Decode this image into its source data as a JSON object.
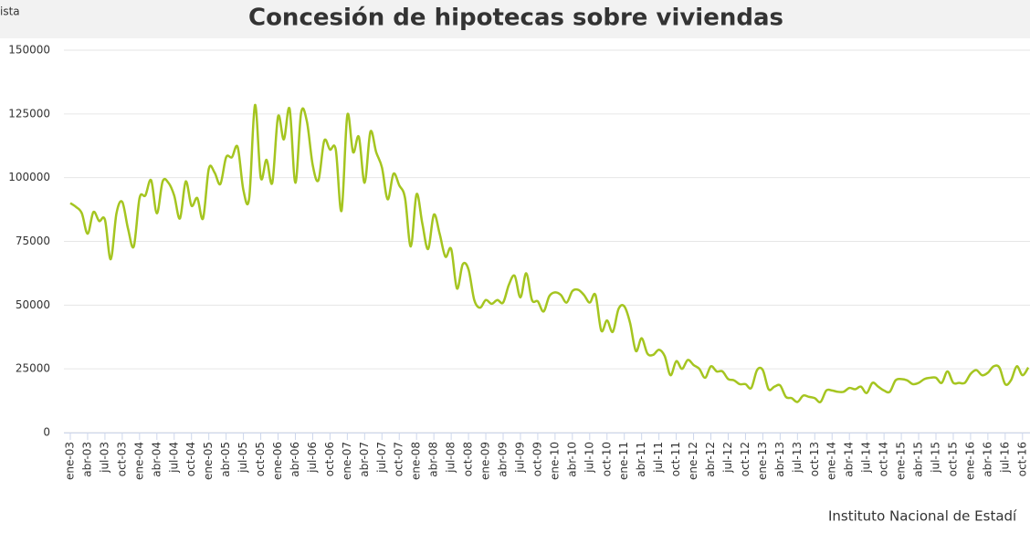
{
  "corner_text": "ista",
  "source": "Instituto Nacional de Estadí",
  "chart_data": {
    "type": "line",
    "title": "Concesión de hipotecas sobre viviendas",
    "color": "#a5c520",
    "grid": true,
    "ylim": [
      0,
      150000
    ],
    "yticks": [
      0,
      25000,
      50000,
      75000,
      100000,
      125000,
      150000
    ],
    "categories": [
      "ene-03",
      null,
      null,
      "abr-03",
      null,
      null,
      "jul-03",
      null,
      null,
      "oct-03",
      null,
      null,
      "ene-04",
      null,
      null,
      "abr-04",
      null,
      null,
      "jul-04",
      null,
      null,
      "oct-04",
      null,
      null,
      "ene-05",
      null,
      null,
      "abr-05",
      null,
      null,
      "jul-05",
      null,
      null,
      "oct-05",
      null,
      null,
      "ene-06",
      null,
      null,
      "abr-06",
      null,
      null,
      "jul-06",
      null,
      null,
      "oct-06",
      null,
      null,
      "ene-07",
      null,
      null,
      "abr-07",
      null,
      null,
      "jul-07",
      null,
      null,
      "oct-07",
      null,
      null,
      "ene-08",
      null,
      null,
      "abr-08",
      null,
      null,
      "jul-08",
      null,
      null,
      "oct-08",
      null,
      null,
      "ene-09",
      null,
      null,
      "abr-09",
      null,
      null,
      "jul-09",
      null,
      null,
      "oct-09",
      null,
      null,
      "ene-10",
      null,
      null,
      "abr-10",
      null,
      null,
      "jul-10",
      null,
      null,
      "oct-10",
      null,
      null,
      "ene-11",
      null,
      null,
      "abr-11",
      null,
      null,
      "jul-11",
      null,
      null,
      "oct-11",
      null,
      null,
      "ene-12",
      null,
      null,
      "abr-12",
      null,
      null,
      "jul-12",
      null,
      null,
      "oct-12",
      null,
      null,
      "ene-13",
      null,
      null,
      "abr-13",
      null,
      null,
      "jul-13",
      null,
      null,
      "oct-13",
      null,
      null,
      "ene-14",
      null,
      null,
      "abr-14",
      null,
      null,
      "jul-14",
      null,
      null,
      "oct-14",
      null,
      null,
      "ene-15",
      null,
      null,
      "abr-15",
      null,
      null,
      "jul-15",
      null,
      null,
      "oct-15",
      null,
      null,
      "ene-16",
      null,
      null,
      "abr-16",
      null,
      null,
      "jul-16",
      null,
      null,
      "oct-16",
      null
    ],
    "values": [
      90000,
      88500,
      86000,
      78000,
      86500,
      83000,
      83500,
      68000,
      86000,
      90500,
      80000,
      73000,
      92000,
      93000,
      99000,
      86000,
      98500,
      98000,
      93000,
      84000,
      98500,
      89000,
      92000,
      84000,
      103500,
      102000,
      97500,
      108000,
      108000,
      112000,
      95000,
      92000,
      128500,
      100000,
      107000,
      98000,
      124000,
      115000,
      127000,
      98000,
      125500,
      122000,
      105000,
      99000,
      114500,
      111000,
      111000,
      87000,
      124500,
      110000,
      116000,
      98000,
      118000,
      110000,
      104000,
      91500,
      101500,
      97000,
      92000,
      73000,
      93500,
      82000,
      72000,
      85500,
      78000,
      69000,
      72000,
      56500,
      66000,
      64000,
      52000,
      49000,
      52000,
      50500,
      52000,
      51000,
      58000,
      61500,
      53000,
      62500,
      52000,
      51500,
      47500,
      53500,
      55000,
      54000,
      51000,
      55500,
      56000,
      54000,
      51000,
      54000,
      40000,
      44000,
      39500,
      48500,
      49500,
      43000,
      32000,
      37000,
      31000,
      30500,
      32500,
      30000,
      22500,
      28000,
      25000,
      28500,
      26500,
      25000,
      21500,
      26000,
      24000,
      24000,
      21000,
      20500,
      19000,
      19000,
      17500,
      24500,
      24500,
      17000,
      18000,
      18500,
      14000,
      13500,
      12000,
      14500,
      14000,
      13500,
      12000,
      16500,
      16500,
      16000,
      16000,
      17500,
      17000,
      18000,
      15500,
      19500,
      18000,
      16500,
      16000,
      20500,
      21000,
      20500,
      19000,
      19500,
      21000,
      21500,
      21500,
      19500,
      24000,
      19500,
      19500,
      19500,
      23000,
      24500,
      22500,
      23500,
      26000,
      25500,
      19000,
      20500,
      26000,
      22500,
      25500
    ]
  }
}
